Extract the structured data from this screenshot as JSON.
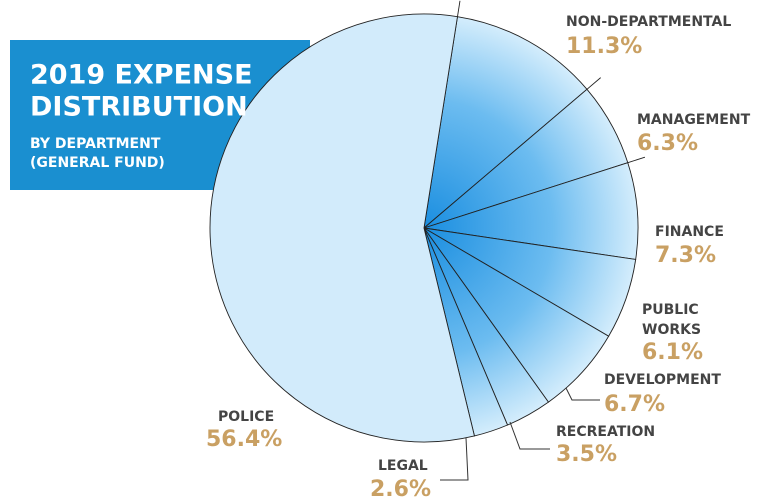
{
  "chart_data": {
    "type": "pie",
    "title": [
      "2019 EXPENSE",
      "DISTRIBUTION"
    ],
    "subtitle": [
      "BY DEPARTMENT",
      "(GENERAL FUND)"
    ],
    "categories": [
      "NON-DEPARTMENTAL",
      "MANAGEMENT",
      "FINANCE",
      "PUBLIC WORKS",
      "DEVELOPMENT",
      "RECREATION",
      "LEGAL",
      "POLICE"
    ],
    "values": [
      11.3,
      6.3,
      7.3,
      6.1,
      6.7,
      3.5,
      2.6,
      56.4
    ],
    "value_labels": [
      "11.3%",
      "6.3%",
      "7.3%",
      "6.1%",
      "6.7%",
      "3.5%",
      "2.6%",
      "56.4%"
    ],
    "colors": [
      "gradient",
      "gradient",
      "gradient",
      "gradient",
      "gradient",
      "gradient",
      "gradient",
      "#d2ebfb"
    ],
    "gradient_colors": [
      "#1a8ee0",
      "#6cbcf0",
      "#d4edfc"
    ],
    "title_box_color": "#1a8fd0",
    "label_color": "#444444",
    "value_label_color": "#c9a063"
  }
}
